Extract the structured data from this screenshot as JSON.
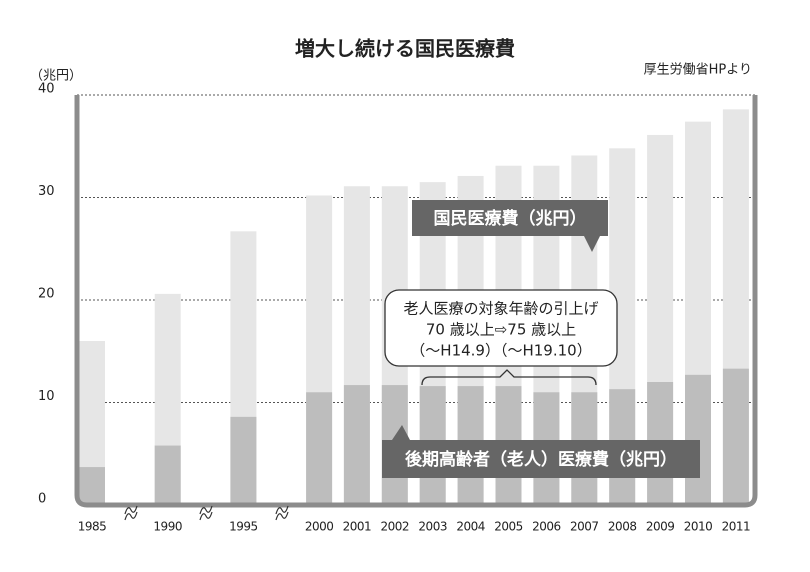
{
  "chart_data": {
    "type": "bar",
    "title": "増大し続ける国民医療費",
    "source": "厚生労働省HPより",
    "y_label": "（兆円）",
    "categories": [
      "1985",
      "1990",
      "1995",
      "2000",
      "2001",
      "2002",
      "2003",
      "2004",
      "2005",
      "2006",
      "2007",
      "2008",
      "2009",
      "2010",
      "2011"
    ],
    "series": [
      {
        "name": "国民医療費（兆円）",
        "color": "#e6e6e6",
        "values": [
          16.0,
          20.6,
          26.7,
          30.2,
          31.1,
          31.1,
          31.5,
          32.1,
          33.1,
          33.1,
          34.1,
          34.8,
          36.1,
          37.4,
          38.6
        ]
      },
      {
        "name": "後期高齢者（老人）医療費（兆円）",
        "color": "#bdbdbd",
        "values": [
          3.7,
          5.8,
          8.6,
          11.0,
          11.7,
          11.7,
          11.6,
          11.6,
          11.6,
          11.0,
          11.0,
          11.3,
          12.0,
          12.7,
          13.3
        ]
      }
    ],
    "annotation": [
      "老人医療の対象年齢の引上げ",
      "70 歳以上⇨75 歳以上",
      "（〜H14.9）（〜H19.10）"
    ],
    "ylim": [
      0,
      40
    ],
    "yticks": [
      0,
      10,
      20,
      30,
      40
    ],
    "grid": true
  }
}
